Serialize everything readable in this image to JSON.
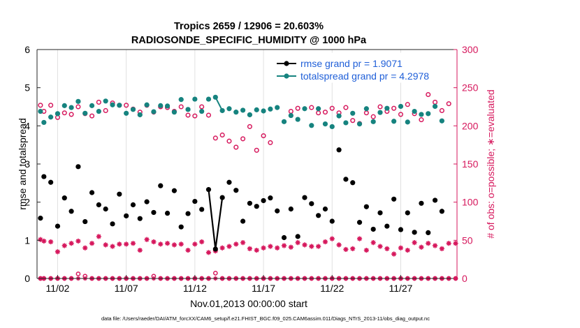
{
  "colors": {
    "rmse": "#000000",
    "totalspread": "#16837f",
    "obs": "#d6175c",
    "legend_text": "#1f5fd8",
    "axis": "#262626",
    "grid": "#e0e0e0"
  },
  "chart_data": {
    "type": "line",
    "title": "Tropics 2659 / 12906 = 20.603%",
    "subtitle": "RADIOSONDE_SPECIFIC_HUMIDITY @ 1000 hPa",
    "xlabel": "Nov.01,2013 00:00:00 start",
    "ylabel": "rmse and totalspread",
    "ylabel_right": "# of obs: o=possible; ∗=evaluated",
    "xlim": [
      0.5,
      31.1
    ],
    "ylim": [
      0,
      6
    ],
    "ylim_right": [
      0,
      300
    ],
    "x_ticks": [
      2,
      7,
      12,
      17,
      22,
      27
    ],
    "x_tick_labels": [
      "11/02",
      "11/07",
      "11/12",
      "11/17",
      "11/22",
      "11/27"
    ],
    "y_ticks": [
      0,
      1,
      2,
      3,
      4,
      5,
      6
    ],
    "y_tick_labels": [
      "0",
      "1",
      "2",
      "3",
      "4",
      "5",
      "6"
    ],
    "y_right_ticks": [
      0,
      50,
      100,
      150,
      200,
      250,
      300
    ],
    "y_right_tick_labels": [
      "0",
      "50",
      "100",
      "150",
      "200",
      "250",
      "300"
    ],
    "legend": [
      {
        "label": "rmse grand pr = 1.9071",
        "series": "rmse"
      },
      {
        "label": "totalspread grand pr = 4.2978",
        "series": "totalspread"
      }
    ],
    "legend_position": "top-right",
    "grid": true,
    "footer": "data file: /Users/raeder/DAI/ATM_forcXX/CAM6_setup/f.e21.FHIST_BGC.f09_025.CAM6assim.011/Diags_NTrS_2013-11/obs_diag_output.nc",
    "x": [
      0.75,
      1.0,
      1.5,
      2.0,
      2.5,
      3.0,
      3.5,
      4.0,
      4.5,
      5.0,
      5.5,
      6.0,
      6.5,
      7.0,
      7.5,
      8.0,
      8.5,
      9.0,
      9.5,
      10.0,
      10.5,
      11.0,
      11.5,
      12.0,
      12.5,
      13.0,
      13.5,
      14.0,
      14.5,
      15.0,
      15.5,
      16.0,
      16.5,
      17.0,
      17.5,
      18.0,
      18.5,
      19.0,
      19.5,
      20.0,
      20.5,
      21.0,
      21.5,
      22.0,
      22.5,
      23.0,
      23.5,
      24.0,
      24.5,
      25.0,
      25.5,
      26.0,
      26.5,
      27.0,
      27.5,
      28.0,
      28.5,
      29.0,
      29.5,
      30.0,
      30.5,
      31.0
    ],
    "series": [
      {
        "name": "rmse",
        "style": "line-markers",
        "values": [
          1.58,
          2.67,
          2.52,
          1.37,
          2.11,
          1.76,
          2.93,
          1.49,
          2.25,
          1.93,
          1.82,
          1.43,
          2.21,
          1.64,
          1.93,
          1.57,
          2.01,
          1.73,
          2.43,
          1.71,
          2.3,
          1.35,
          1.7,
          2.02,
          1.81,
          2.33,
          0.77,
          2.12,
          2.52,
          2.31,
          1.5,
          1.97,
          1.89,
          2.04,
          2.11,
          1.77,
          1.07,
          1.82,
          1.1,
          2.12,
          1.96,
          1.65,
          1.82,
          1.5,
          3.37,
          2.6,
          2.51,
          1.47,
          1.88,
          1.29,
          1.72,
          1.37,
          2.08,
          1.28,
          1.72,
          1.21,
          1.97,
          1.2,
          2.05,
          1.76,
          null,
          null
        ],
        "connected_segments": [
          [
            25,
            27
          ]
        ]
      },
      {
        "name": "totalspread",
        "style": "markers",
        "values": [
          4.38,
          4.09,
          4.23,
          4.32,
          4.53,
          4.48,
          4.64,
          4.33,
          4.53,
          4.38,
          4.65,
          4.55,
          4.54,
          4.33,
          4.43,
          4.29,
          4.55,
          4.37,
          4.53,
          4.52,
          4.36,
          4.69,
          4.43,
          4.7,
          4.38,
          4.7,
          4.75,
          4.4,
          4.45,
          4.36,
          4.41,
          4.29,
          4.42,
          4.39,
          4.44,
          4.48,
          4.11,
          4.27,
          4.17,
          4.45,
          4.01,
          4.45,
          4.05,
          3.98,
          4.26,
          4.08,
          4.33,
          4.05,
          4.45,
          4.11,
          4.35,
          4.46,
          4.12,
          4.51,
          4.1,
          4.38,
          4.3,
          4.32,
          4.51,
          4.13,
          null,
          null
        ],
        "connected_segments": [
          [
            26,
            27
          ]
        ]
      },
      {
        "name": "possible_obs",
        "style": "circles",
        "axis": "right",
        "values": [
          227,
          219,
          227,
          211,
          217,
          215,
          225,
          216,
          213,
          231,
          220,
          230,
          227,
          227,
          222,
          218,
          227,
          218,
          225,
          224,
          219,
          225,
          214,
          213,
          225,
          214,
          184,
          188,
          180,
          172,
          183,
          199,
          168,
          187,
          178,
          null,
          null,
          219,
          223,
          null,
          224,
          217,
          218,
          223,
          217,
          224,
          207,
          203,
          217,
          212,
          225,
          219,
          223,
          215,
          228,
          216,
          208,
          241,
          231,
          220,
          229,
          null
        ],
        "zero_row": [
          0,
          0,
          0,
          0,
          0,
          0,
          6,
          3,
          0,
          0,
          0,
          0,
          0,
          0,
          0,
          0,
          0,
          3,
          0,
          0,
          0,
          0,
          0,
          0,
          0,
          0,
          7,
          0,
          0,
          0,
          0,
          0,
          0,
          0,
          0,
          0,
          0,
          0,
          0,
          0,
          0,
          0,
          0,
          0,
          0,
          0,
          0,
          0,
          0,
          0,
          0,
          0,
          0,
          0,
          0,
          0,
          0,
          0,
          0,
          0,
          0,
          0
        ]
      },
      {
        "name": "evaluated_obs",
        "style": "asterisks",
        "axis": "right",
        "values": [
          51,
          49,
          48,
          35,
          43,
          46,
          49,
          40,
          46,
          55,
          44,
          42,
          45,
          45,
          46,
          37,
          51,
          48,
          45,
          46,
          44,
          45,
          37,
          45,
          48,
          34,
          36,
          40,
          42,
          45,
          47,
          39,
          37,
          40,
          42,
          40,
          43,
          41,
          47,
          44,
          42,
          42,
          48,
          52,
          44,
          38,
          39,
          52,
          37,
          47,
          42,
          39,
          32,
          40,
          37,
          47,
          41,
          46,
          43,
          39,
          46,
          46
        ]
      }
    ]
  }
}
